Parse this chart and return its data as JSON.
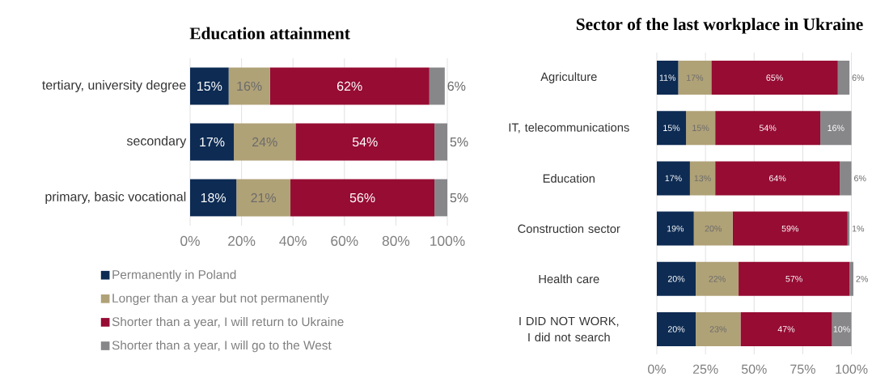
{
  "chart_data": [
    {
      "type": "bar",
      "orientation": "horizontal",
      "stacked": true,
      "title": "Education attainment",
      "categories": [
        "tertiary, university degree",
        "secondary",
        "primary, basic vocational"
      ],
      "series": [
        {
          "name": "Permanently in Poland",
          "color": "#0d2b53",
          "values": [
            15,
            17,
            18
          ],
          "value_labels": [
            "15%",
            "17%",
            "18%"
          ]
        },
        {
          "name": "Longer than a year but not permanently",
          "color": "#b0a277",
          "values": [
            16,
            24,
            21
          ],
          "value_labels": [
            "16%",
            "24%",
            "21%"
          ]
        },
        {
          "name": "Shorter than a year, I will return to Ukraine",
          "color": "#960c33",
          "values": [
            62,
            54,
            56
          ],
          "value_labels": [
            "62%",
            "54%",
            "56%"
          ]
        },
        {
          "name": "Shorter than a year, I will go to the West",
          "color": "#87878a",
          "values": [
            6,
            5,
            5
          ],
          "value_labels": [
            "6%",
            "5%",
            "5%"
          ]
        }
      ],
      "xlim": [
        0,
        100
      ],
      "xticks": [
        {
          "value": 0,
          "label": "0%"
        },
        {
          "value": 20,
          "label": "20%"
        },
        {
          "value": 40,
          "label": "40%"
        },
        {
          "value": 60,
          "label": "60%"
        },
        {
          "value": 80,
          "label": "80%"
        },
        {
          "value": 100,
          "label": "100%"
        }
      ],
      "grid": "x",
      "legend": "bottom"
    },
    {
      "type": "bar",
      "orientation": "horizontal",
      "stacked": true,
      "title": "Sector of the last workplace in Ukraine",
      "categories": [
        "Agriculture",
        "IT, telecommunications",
        "Education",
        "Construction sector",
        "Health care",
        "I DID NOT WORK, I did not search"
      ],
      "series": [
        {
          "color": "#0d2b53",
          "values": [
            11,
            15,
            17,
            19,
            20,
            20
          ],
          "value_labels": [
            "11%",
            "15%",
            "17%",
            "19%",
            "20%",
            "20%"
          ]
        },
        {
          "color": "#b0a277",
          "values": [
            17,
            15,
            13,
            20,
            22,
            23
          ],
          "value_labels": [
            "17%",
            "15%",
            "13%",
            "20%",
            "22%",
            "23%"
          ]
        },
        {
          "color": "#960c33",
          "values": [
            65,
            54,
            64,
            59,
            57,
            47
          ],
          "value_labels": [
            "65%",
            "54%",
            "64%",
            "59%",
            "57%",
            "47%"
          ]
        },
        {
          "color": "#87878a",
          "values": [
            6,
            16,
            6,
            1,
            2,
            10
          ],
          "value_labels": [
            "6%",
            "16%",
            "6%",
            "1%",
            "2%",
            "10%"
          ]
        }
      ],
      "xlim": [
        0,
        101
      ],
      "xticks": [
        {
          "value": 0,
          "label": "0%"
        },
        {
          "value": 25,
          "label": "25%"
        },
        {
          "value": 50,
          "label": "50%"
        },
        {
          "value": 75,
          "label": "75%"
        },
        {
          "value": 100,
          "label": "100%"
        }
      ],
      "grid": "x",
      "legend": false
    }
  ]
}
